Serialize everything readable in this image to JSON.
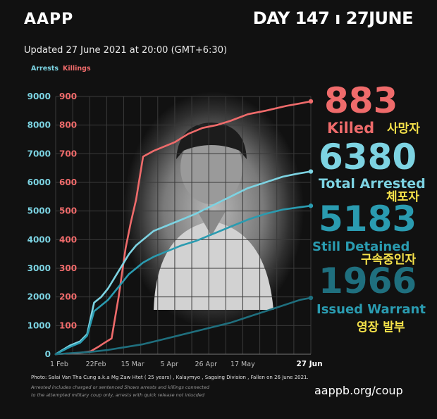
{
  "header": {
    "brand": "AAPP",
    "day_label": "DAY 147 ı 27JUNE",
    "updated": "Updated 27 June 2021 at 20:00 (GMT+6:30)"
  },
  "chart_data": {
    "type": "line",
    "legend": {
      "arrests_label": "Arrests",
      "killings_label": "Killings",
      "placement": "top-left"
    },
    "x_ticks": [
      "1 Feb",
      "22Feb",
      "15 Mar",
      "5 Apr",
      "26 Apr",
      "17 May",
      "27 Jun"
    ],
    "x_range_days": [
      0,
      146
    ],
    "y_left_ticks": [
      "0",
      "1000",
      "2000",
      "3000",
      "4000",
      "5000",
      "6000",
      "7000",
      "8000",
      "9000"
    ],
    "y_left_range": [
      0,
      9000
    ],
    "y_right_ticks": [
      "100",
      "200",
      "300",
      "400",
      "500",
      "600",
      "700",
      "800",
      "900"
    ],
    "y_right_range": [
      0,
      900
    ],
    "grid": true,
    "series": [
      {
        "name": "Killed",
        "axis": "right",
        "color": "#ef6b6b",
        "x": [
          0,
          14,
          20,
          25,
          28,
          32,
          36,
          40,
          43,
          46,
          50,
          56,
          60,
          68,
          76,
          84,
          92,
          100,
          110,
          120,
          132,
          140,
          146
        ],
        "y": [
          0,
          5,
          10,
          28,
          40,
          55,
          200,
          370,
          460,
          540,
          690,
          710,
          720,
          740,
          770,
          790,
          800,
          815,
          838,
          850,
          867,
          876,
          883
        ]
      },
      {
        "name": "Total Arrested",
        "axis": "left",
        "color": "#7dd3e2",
        "x": [
          0,
          8,
          14,
          18,
          22,
          26,
          30,
          34,
          38,
          42,
          46,
          50,
          56,
          64,
          72,
          80,
          90,
          100,
          110,
          120,
          130,
          138,
          146
        ],
        "y": [
          0,
          300,
          450,
          700,
          1800,
          2000,
          2300,
          2700,
          3100,
          3500,
          3800,
          4000,
          4300,
          4500,
          4700,
          4900,
          5200,
          5500,
          5800,
          6000,
          6200,
          6300,
          6380
        ]
      },
      {
        "name": "Still Detained",
        "axis": "left",
        "color": "#2a9bb0",
        "x": [
          0,
          8,
          14,
          18,
          22,
          26,
          30,
          34,
          38,
          42,
          46,
          50,
          56,
          64,
          72,
          80,
          90,
          100,
          110,
          120,
          130,
          138,
          146
        ],
        "y": [
          0,
          250,
          400,
          650,
          1500,
          1700,
          1900,
          2200,
          2500,
          2800,
          3000,
          3200,
          3400,
          3600,
          3800,
          3950,
          4200,
          4450,
          4700,
          4900,
          5050,
          5120,
          5183
        ]
      },
      {
        "name": "Issued Warrant",
        "axis": "left",
        "color": "#1f6f7e",
        "x": [
          0,
          20,
          30,
          40,
          50,
          60,
          70,
          80,
          90,
          100,
          110,
          120,
          130,
          140,
          146
        ],
        "y": [
          0,
          80,
          150,
          250,
          350,
          500,
          650,
          800,
          950,
          1100,
          1300,
          1500,
          1700,
          1900,
          1966
        ]
      }
    ]
  },
  "stats": [
    {
      "value": "883",
      "label": "Killed",
      "korean": "사망자",
      "value_color": "#ef6b6b",
      "label_color": "#ef6b6b"
    },
    {
      "value": "6380",
      "label": "Total Arrested",
      "korean": "체포자",
      "value_color": "#7dd3e2",
      "label_color": "#7dd3e2"
    },
    {
      "value": "5183",
      "label": "Still Detained",
      "korean": "구속중인자",
      "value_color": "#2a9bb0",
      "label_color": "#2a9bb0"
    },
    {
      "value": "1966",
      "label": "Issued Warrant",
      "korean": "영장 발부",
      "value_color": "#1f6f7e",
      "label_color": "#2a9bb0"
    }
  ],
  "footer": {
    "photo_credit": "Photo: Salai Van Tha Cung a.k.a Mg Zaw Htet ( 25 years) , Kalaymyo , Sagaing Division , Fallen on 26 June 2021.",
    "note_line1": "Arrested includes charged or sentenced Shows arrests and killings connected",
    "note_line2": "to the attempted military coup only, arrests with quick release not inlucded",
    "url": "aappb.org/coup"
  }
}
